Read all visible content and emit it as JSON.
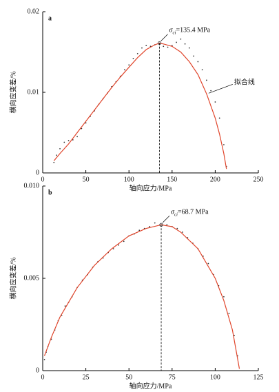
{
  "chart_data": [
    {
      "type": "scatter",
      "panel": "a",
      "xlabel": "轴向应力/MPa",
      "ylabel": "横向应变差/%",
      "xlim": [
        0,
        250
      ],
      "xticks": [
        0,
        50,
        100,
        150,
        200,
        250
      ],
      "ylim": [
        0,
        0.02
      ],
      "yticks": [
        0,
        0.01,
        0.02
      ],
      "annotation": {
        "symbol": "σ",
        "subscript": "ci",
        "text": "=135.4 MPa",
        "x": 135.4,
        "y": 0.0161
      },
      "series": [
        {
          "style": "points",
          "color": "#333333",
          "x": [
            13,
            16,
            20,
            25,
            30,
            35,
            40,
            45,
            50,
            55,
            60,
            65,
            70,
            75,
            80,
            85,
            90,
            95,
            100,
            105,
            110,
            115,
            120,
            125,
            130,
            135.4,
            140,
            145,
            150,
            155,
            160,
            165,
            170,
            175,
            180,
            185,
            190,
            195,
            200,
            205,
            210,
            213
          ],
          "values": [
            0.0013,
            0.0022,
            0.003,
            0.0038,
            0.004,
            0.0041,
            0.0045,
            0.0055,
            0.0062,
            0.007,
            0.0077,
            0.0085,
            0.0092,
            0.0099,
            0.0107,
            0.0113,
            0.012,
            0.0128,
            0.0134,
            0.0142,
            0.0148,
            0.0155,
            0.0158,
            0.0157,
            0.0159,
            0.0161,
            0.0157,
            0.0156,
            0.0158,
            0.0162,
            0.0166,
            0.016,
            0.0155,
            0.0145,
            0.0138,
            0.0128,
            0.0115,
            0.0102,
            0.0088,
            0.0068,
            0.0035,
            0.0008
          ]
        },
        {
          "style": "line",
          "name": "拟合线",
          "color": "#e0442a",
          "x": [
            13,
            20,
            30,
            40,
            50,
            60,
            70,
            80,
            90,
            100,
            110,
            120,
            130,
            135.4,
            140,
            150,
            160,
            170,
            180,
            190,
            200,
            205,
            210,
            213
          ],
          "values": [
            0.0015,
            0.0024,
            0.0036,
            0.005,
            0.0064,
            0.0078,
            0.0092,
            0.0106,
            0.0119,
            0.0131,
            0.0143,
            0.0153,
            0.0159,
            0.0161,
            0.016,
            0.0157,
            0.015,
            0.0138,
            0.0122,
            0.0098,
            0.0068,
            0.0048,
            0.0024,
            0.0005
          ]
        }
      ]
    },
    {
      "type": "scatter",
      "panel": "b",
      "xlabel": "轴向应力/MPa",
      "ylabel": "横向应变差/%",
      "xlim": [
        0,
        125
      ],
      "xticks": [
        0,
        25,
        50,
        75,
        100,
        125
      ],
      "ylim": [
        0,
        0.01
      ],
      "yticks": [
        0,
        0.005,
        {
          "value": 0.01,
          "label": "0.010"
        }
      ],
      "annotation": {
        "symbol": "σ",
        "subscript": "ci",
        "text": "=68.7 MPa",
        "x": 68.7,
        "y": 0.0079
      },
      "series": [
        {
          "style": "points",
          "color": "#333333",
          "x": [
            1,
            2,
            3,
            5,
            7,
            9,
            11,
            13,
            15,
            17,
            20,
            23,
            26,
            29,
            32,
            35,
            38,
            41,
            44,
            47,
            50,
            53,
            56,
            59,
            62,
            65,
            68.7,
            72,
            75,
            78,
            81,
            84,
            87,
            90,
            93,
            96,
            99,
            102,
            105,
            108,
            111,
            113
          ],
          "values": [
            0.0006,
            0.001,
            0.0013,
            0.0017,
            0.0022,
            0.0027,
            0.003,
            0.0035,
            0.0037,
            0.004,
            0.0045,
            0.0049,
            0.0052,
            0.0056,
            0.0059,
            0.0061,
            0.0064,
            0.0066,
            0.0068,
            0.007,
            0.0073,
            0.0074,
            0.0076,
            0.0077,
            0.0078,
            0.008,
            0.0079,
            0.0079,
            0.0078,
            0.0077,
            0.0075,
            0.0072,
            0.0069,
            0.0066,
            0.0062,
            0.0058,
            0.0052,
            0.0046,
            0.004,
            0.0031,
            0.0019,
            0.0008
          ]
        },
        {
          "style": "line",
          "color": "#e0442a",
          "x": [
            1,
            5,
            10,
            20,
            30,
            40,
            50,
            60,
            68.7,
            75,
            80,
            90,
            100,
            105,
            110,
            114
          ],
          "values": [
            0.0008,
            0.0018,
            0.0029,
            0.0045,
            0.0057,
            0.0066,
            0.0073,
            0.0077,
            0.0079,
            0.0078,
            0.0075,
            0.0066,
            0.005,
            0.0038,
            0.0022,
            0.0001
          ]
        }
      ]
    }
  ]
}
